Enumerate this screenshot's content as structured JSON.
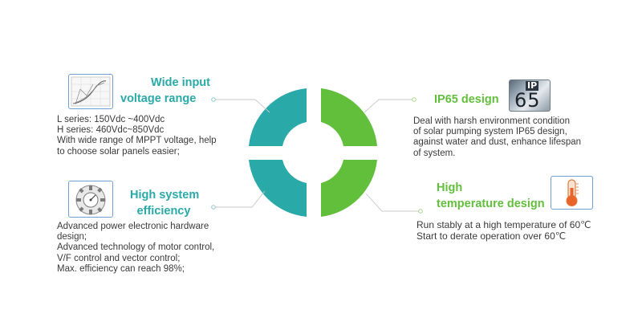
{
  "colors": {
    "teal": "#2aa9a9",
    "green": "#62bf3c",
    "connector": "#bfbfbf",
    "icon_border": "#6f9fd8"
  },
  "features": {
    "wide_input": {
      "title_line1": "Wide input",
      "title_line2": "voltage range",
      "lines": [
        "L series: 150Vdc ~400Vdc",
        "H series: 460Vdc~850Vdc",
        "With wide range of MPPT voltage, help",
        "to choose solar panels easier;"
      ],
      "icon": "voltage-curve-chart-icon"
    },
    "ip65": {
      "title": "IP65 design",
      "icon_text_top": "IP",
      "icon_text_bottom": "65",
      "lines": [
        "Deal with harsh environment condition",
        "of solar pumping system IP65 design,",
        "against water and dust, enhance lifespan",
        "of system."
      ],
      "icon": "ip65-badge-icon"
    },
    "efficiency": {
      "title_line1": "High system",
      "title_line2": "efficiency",
      "lines": [
        "Advanced power electronic hardware",
        "design;",
        "Advanced technology of motor control,",
        "V/F control and vector control;",
        "Max. efficiency can reach 98%;"
      ],
      "icon": "efficiency-gauge-icon"
    },
    "high_temp": {
      "title_line1": "High",
      "title_line2": "temperature design",
      "lines": [
        "Run stably at a high temperature of 60℃",
        "Start to derate operation over 60℃"
      ],
      "icon": "thermometer-icon"
    }
  }
}
